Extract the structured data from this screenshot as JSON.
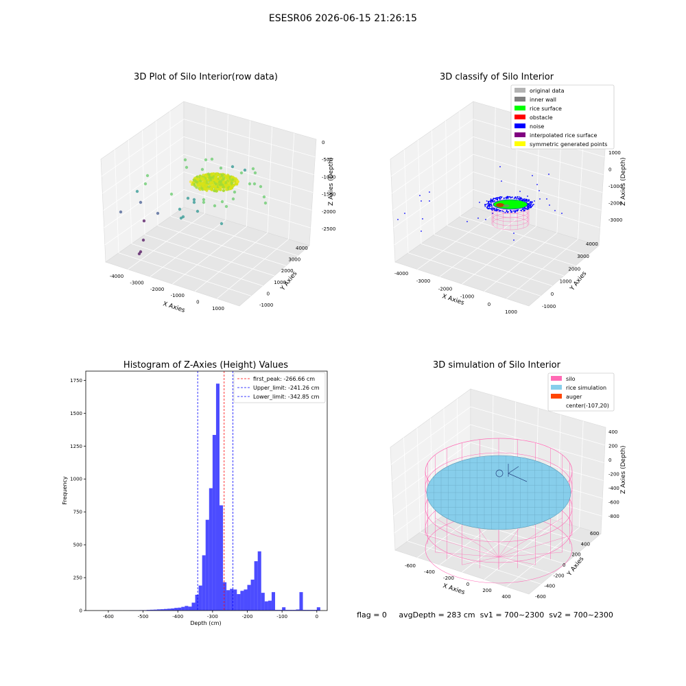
{
  "figure_title": "ESESR06 2026-06-15 21:26:15",
  "footer_text": "flag = 0     avgDepth = 283 cm  sv1 = 700~2300  sv2 = 700~2300",
  "chart_data": [
    {
      "type": "scatter3d",
      "title": "3D Plot of Silo Interior(row data)",
      "xlabel": "X Axies",
      "ylabel": "Y Axies",
      "zlabel": "Z Axies (Depth)",
      "xticks": [
        "-4000",
        "-3000",
        "-2000",
        "-1000",
        "0",
        "1000"
      ],
      "yticks": [
        "-1000",
        "0",
        "1000",
        "2000",
        "3000",
        "4000"
      ],
      "zticks": [
        "0",
        "-500",
        "-1000",
        "-1500",
        "-2000",
        "-2500"
      ],
      "colormap": [
        "#440154",
        "#3b528b",
        "#21918c",
        "#5ec962",
        "#fde725"
      ]
    },
    {
      "type": "scatter3d",
      "title": "3D classify of Silo Interior",
      "xlabel": "X Axies",
      "ylabel": "Y Axies",
      "zlabel": "Z Axies (Depth)",
      "xticks": [
        "-4000",
        "-3000",
        "-2000",
        "-1000",
        "0",
        "1000"
      ],
      "yticks": [
        "-1000",
        "0",
        "1000",
        "2000",
        "3000",
        "4000"
      ],
      "zticks": [
        "1000",
        "0",
        "-1000",
        "-2000",
        "-3000"
      ],
      "legend": [
        {
          "label": "original data",
          "color": "#b3b3b3"
        },
        {
          "label": "inner wall",
          "color": "#808080"
        },
        {
          "label": "rice surface",
          "color": "#00ff00"
        },
        {
          "label": "obstacle",
          "color": "#ff0000"
        },
        {
          "label": "noise",
          "color": "#0000ff"
        },
        {
          "label": "interpolated rice surface",
          "color": "#800080"
        },
        {
          "label": "symmetric generated points",
          "color": "#ffff00"
        }
      ],
      "legend_position": "top-right"
    },
    {
      "type": "bar",
      "title": "Histogram of Z-Axies (Height) Values",
      "xlabel": "Depth (cm)",
      "ylabel": "Frequency",
      "xlim": [
        -665,
        30
      ],
      "ylim": [
        0,
        1820
      ],
      "xticks": [
        -600,
        -500,
        -400,
        -300,
        -200,
        -100,
        0
      ],
      "yticks": [
        0,
        250,
        500,
        750,
        1000,
        1250,
        1500,
        1750
      ],
      "bin_width": 10,
      "bar_color": "#0000ff",
      "bins": [
        {
          "x0": -650,
          "v": 0
        },
        {
          "x0": -640,
          "v": 0
        },
        {
          "x0": -630,
          "v": 0
        },
        {
          "x0": -620,
          "v": 0
        },
        {
          "x0": -610,
          "v": 0
        },
        {
          "x0": -600,
          "v": 0
        },
        {
          "x0": -590,
          "v": 1
        },
        {
          "x0": -580,
          "v": 1
        },
        {
          "x0": -570,
          "v": 1
        },
        {
          "x0": -560,
          "v": 1
        },
        {
          "x0": -550,
          "v": 1
        },
        {
          "x0": -540,
          "v": 2
        },
        {
          "x0": -530,
          "v": 2
        },
        {
          "x0": -520,
          "v": 2
        },
        {
          "x0": -510,
          "v": 3
        },
        {
          "x0": -500,
          "v": 3
        },
        {
          "x0": -490,
          "v": 5
        },
        {
          "x0": -480,
          "v": 6
        },
        {
          "x0": -470,
          "v": 7
        },
        {
          "x0": -460,
          "v": 9
        },
        {
          "x0": -450,
          "v": 10
        },
        {
          "x0": -440,
          "v": 12
        },
        {
          "x0": -430,
          "v": 14
        },
        {
          "x0": -420,
          "v": 16
        },
        {
          "x0": -410,
          "v": 20
        },
        {
          "x0": -400,
          "v": 22
        },
        {
          "x0": -390,
          "v": 28
        },
        {
          "x0": -380,
          "v": 35
        },
        {
          "x0": -370,
          "v": 30
        },
        {
          "x0": -360,
          "v": 60
        },
        {
          "x0": -350,
          "v": 120
        },
        {
          "x0": -340,
          "v": 190
        },
        {
          "x0": -330,
          "v": 420
        },
        {
          "x0": -320,
          "v": 690
        },
        {
          "x0": -310,
          "v": 930
        },
        {
          "x0": -300,
          "v": 1335
        },
        {
          "x0": -290,
          "v": 1725
        },
        {
          "x0": -280,
          "v": 800
        },
        {
          "x0": -270,
          "v": 215
        },
        {
          "x0": -260,
          "v": 155
        },
        {
          "x0": -250,
          "v": 165
        },
        {
          "x0": -240,
          "v": 160
        },
        {
          "x0": -230,
          "v": 125
        },
        {
          "x0": -220,
          "v": 150
        },
        {
          "x0": -210,
          "v": 160
        },
        {
          "x0": -200,
          "v": 195
        },
        {
          "x0": -190,
          "v": 235
        },
        {
          "x0": -180,
          "v": 375
        },
        {
          "x0": -170,
          "v": 450
        },
        {
          "x0": -160,
          "v": 135
        },
        {
          "x0": -150,
          "v": 70
        },
        {
          "x0": -140,
          "v": 75
        },
        {
          "x0": -130,
          "v": 140
        },
        {
          "x0": -120,
          "v": 5
        },
        {
          "x0": -110,
          "v": 5
        },
        {
          "x0": -100,
          "v": 25
        }
      ],
      "vlines": [
        {
          "x": -266.66,
          "color": "#ff0000",
          "label": "first_peak: -266.66 cm"
        },
        {
          "x": -241.26,
          "color": "#0000ff",
          "label": "Upper_limit: -241.26 cm"
        },
        {
          "x": -342.85,
          "color": "#0000ff",
          "label": "Lower_limit: -342.85 cm"
        }
      ],
      "legend_position": "top-right"
    },
    {
      "type": "surface3d",
      "title": "3D simulation of Silo Interior",
      "xlabel": "X Axies",
      "ylabel": "Y Axies",
      "zlabel": "Z Axies (Depth)",
      "xticks": [
        "-600",
        "-400",
        "-200",
        "0",
        "200",
        "400"
      ],
      "yticks": [
        "-600",
        "-400",
        "-200",
        "0",
        "200",
        "400",
        "600"
      ],
      "zticks": [
        "400",
        "200",
        "0",
        "-200",
        "-400",
        "-600",
        "-800"
      ],
      "legend": [
        {
          "label": "silo",
          "color": "#ff69b4"
        },
        {
          "label": "rice simulation",
          "color": "#87ceeb"
        },
        {
          "label": "auger",
          "color": "#ff4500"
        },
        {
          "label": "center(-107,20)",
          "color": ""
        }
      ],
      "legend_position": "top-right"
    }
  ]
}
